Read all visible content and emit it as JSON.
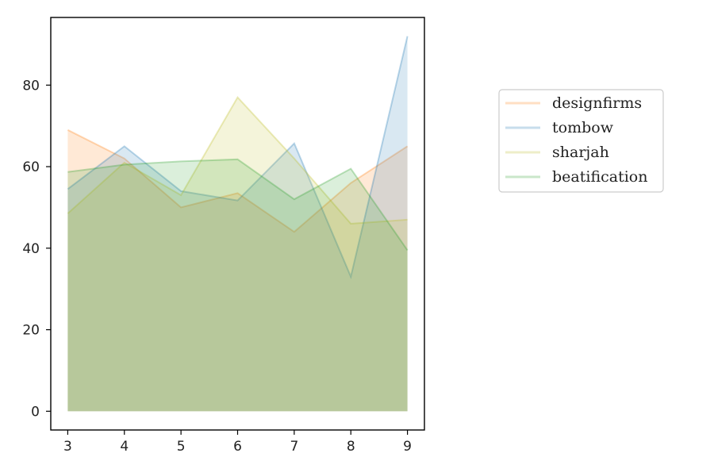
{
  "chart_data": {
    "type": "area",
    "title": "",
    "xlabel": "",
    "ylabel": "",
    "x": [
      3,
      4,
      5,
      6,
      7,
      8,
      9
    ],
    "xlim": [
      2.7,
      9.3
    ],
    "ylim": [
      -4.6,
      96.6
    ],
    "x_ticks": [
      3,
      4,
      5,
      6,
      7,
      8,
      9
    ],
    "y_ticks": [
      0,
      20,
      40,
      60,
      80
    ],
    "grid": false,
    "legend_position": "right, outside the plot area",
    "series": [
      {
        "name": "designfirms",
        "color": "#ff7f0e",
        "values": [
          69,
          62,
          50,
          53.5,
          44,
          56,
          65
        ]
      },
      {
        "name": "tombow",
        "color": "#1f77b4",
        "values": [
          54.5,
          65,
          54,
          51.7,
          65.7,
          33,
          92
        ]
      },
      {
        "name": "sharjah",
        "color": "#bcbd22",
        "values": [
          48.5,
          61,
          53,
          77,
          62,
          46,
          47
        ]
      },
      {
        "name": "beatification",
        "color": "#2ca02c",
        "values": [
          58.7,
          60.5,
          61.3,
          61.8,
          52,
          59.5,
          39.5
        ]
      }
    ]
  }
}
